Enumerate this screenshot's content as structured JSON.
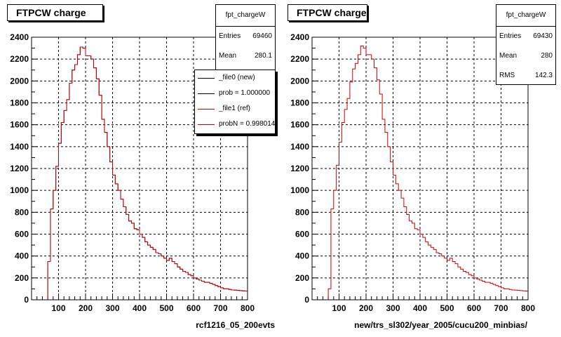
{
  "pads": [
    {
      "title": "FTPCW charge",
      "xlabel": "rcf1216_05_200evts",
      "stats": {
        "name": "fpt_chargeW",
        "rows": [
          {
            "label": "Entries",
            "value": "69460"
          },
          {
            "label": "Mean",
            "value": "280.1"
          }
        ]
      },
      "legend": [
        {
          "text": "_file0 (new)",
          "color": "#000000"
        },
        {
          "text": "prob = 1.000000",
          "color": "#000000"
        },
        {
          "text": "_file1 (ref)",
          "color": "#cc0000"
        },
        {
          "text": "probN = 0.998014",
          "color": "#cc0000"
        }
      ]
    },
    {
      "title": "FTPCW charge",
      "xlabel": "new/trs_sl302/year_2005/cucu200_minbias/",
      "stats": {
        "name": "fpt_chargeW",
        "rows": [
          {
            "label": "Entries",
            "value": "69430"
          },
          {
            "label": "Mean",
            "value": "280"
          },
          {
            "label": "RMS",
            "value": "142.3"
          }
        ]
      },
      "legend": []
    }
  ],
  "chart_data": [
    {
      "type": "histogram",
      "title": "FTPCW charge",
      "xlabel": "rcf1216_05_200evts",
      "xlim": [
        0,
        800
      ],
      "ylim": [
        0,
        2400
      ],
      "xticks": [
        100,
        200,
        300,
        400,
        500,
        600,
        700,
        800
      ],
      "yticks": [
        0,
        200,
        400,
        600,
        800,
        1000,
        1200,
        1400,
        1600,
        1800,
        2000,
        2200,
        2400
      ],
      "grid": true,
      "bin_width": 10,
      "x": [
        65,
        75,
        85,
        95,
        105,
        115,
        125,
        135,
        145,
        155,
        165,
        175,
        185,
        195,
        205,
        215,
        225,
        235,
        245,
        255,
        265,
        275,
        285,
        295,
        305,
        315,
        325,
        335,
        345,
        355,
        365,
        375,
        385,
        395,
        405,
        415,
        425,
        435,
        445,
        455,
        465,
        475,
        485,
        495,
        505,
        515,
        525,
        535,
        545,
        555,
        565,
        575,
        585,
        595,
        605,
        615,
        625,
        635,
        645,
        655,
        665,
        675,
        685,
        695,
        705,
        715,
        725,
        735,
        745,
        755,
        765,
        775,
        785,
        795
      ],
      "series": [
        {
          "name": "_file0 (new)",
          "color": "#000000",
          "values": [
            350,
            830,
            1000,
            1220,
            1430,
            1620,
            1730,
            1830,
            1980,
            2100,
            2150,
            2240,
            2310,
            2300,
            2230,
            2230,
            2200,
            2120,
            2020,
            1870,
            1650,
            1530,
            1400,
            1260,
            1140,
            1060,
            1000,
            920,
            850,
            780,
            720,
            700,
            650,
            640,
            600,
            570,
            530,
            500,
            480,
            460,
            430,
            420,
            400,
            380,
            360,
            380,
            350,
            330,
            300,
            280,
            260,
            250,
            230,
            220,
            200,
            190,
            180,
            170,
            160,
            160,
            150,
            140,
            130,
            120,
            110,
            100,
            100,
            95,
            90,
            88,
            86,
            84,
            82,
            80
          ]
        },
        {
          "name": "_file1 (ref)",
          "color": "#cc0000",
          "values": [
            350,
            830,
            1000,
            1220,
            1430,
            1620,
            1730,
            1830,
            1980,
            2100,
            2150,
            2240,
            2310,
            2300,
            2230,
            2230,
            2200,
            2120,
            2020,
            1870,
            1650,
            1530,
            1400,
            1260,
            1140,
            1060,
            1000,
            920,
            850,
            780,
            720,
            700,
            650,
            640,
            600,
            570,
            530,
            500,
            480,
            460,
            430,
            420,
            400,
            380,
            360,
            380,
            350,
            330,
            300,
            280,
            260,
            250,
            230,
            220,
            200,
            190,
            180,
            170,
            160,
            160,
            150,
            140,
            130,
            120,
            110,
            100,
            100,
            95,
            90,
            88,
            86,
            84,
            82,
            80
          ]
        }
      ]
    },
    {
      "type": "histogram",
      "title": "FTPCW charge",
      "xlabel": "new/trs_sl302/year_2005/cucu200_minbias/",
      "xlim": [
        0,
        800
      ],
      "ylim": [
        0,
        2400
      ],
      "xticks": [
        100,
        200,
        300,
        400,
        500,
        600,
        700,
        800
      ],
      "yticks": [
        0,
        200,
        400,
        600,
        800,
        1000,
        1200,
        1400,
        1600,
        1800,
        2000,
        2200,
        2400
      ],
      "grid": true,
      "bin_width": 10,
      "x": [
        65,
        75,
        85,
        95,
        105,
        115,
        125,
        135,
        145,
        155,
        165,
        175,
        185,
        195,
        205,
        215,
        225,
        235,
        245,
        255,
        265,
        275,
        285,
        295,
        305,
        315,
        325,
        335,
        345,
        355,
        365,
        375,
        385,
        395,
        405,
        415,
        425,
        435,
        445,
        455,
        465,
        475,
        485,
        495,
        505,
        515,
        525,
        535,
        545,
        555,
        565,
        575,
        585,
        595,
        605,
        615,
        625,
        635,
        645,
        655,
        665,
        675,
        685,
        695,
        705,
        715,
        725,
        735,
        745,
        755,
        765,
        775,
        785,
        795
      ],
      "series": [
        {
          "color": "#cc0000",
          "values": [
            100,
            830,
            1000,
            1230,
            1440,
            1620,
            1740,
            1840,
            1990,
            2110,
            2160,
            2240,
            2320,
            2300,
            2240,
            2240,
            2200,
            2120,
            2010,
            1880,
            1650,
            1530,
            1400,
            1260,
            1140,
            1060,
            1000,
            930,
            850,
            780,
            720,
            700,
            650,
            640,
            600,
            570,
            530,
            500,
            480,
            460,
            430,
            420,
            400,
            380,
            360,
            380,
            350,
            330,
            300,
            280,
            260,
            250,
            230,
            220,
            200,
            190,
            180,
            170,
            160,
            160,
            150,
            140,
            130,
            120,
            110,
            100,
            100,
            95,
            90,
            88,
            86,
            84,
            82,
            80
          ]
        }
      ]
    }
  ]
}
